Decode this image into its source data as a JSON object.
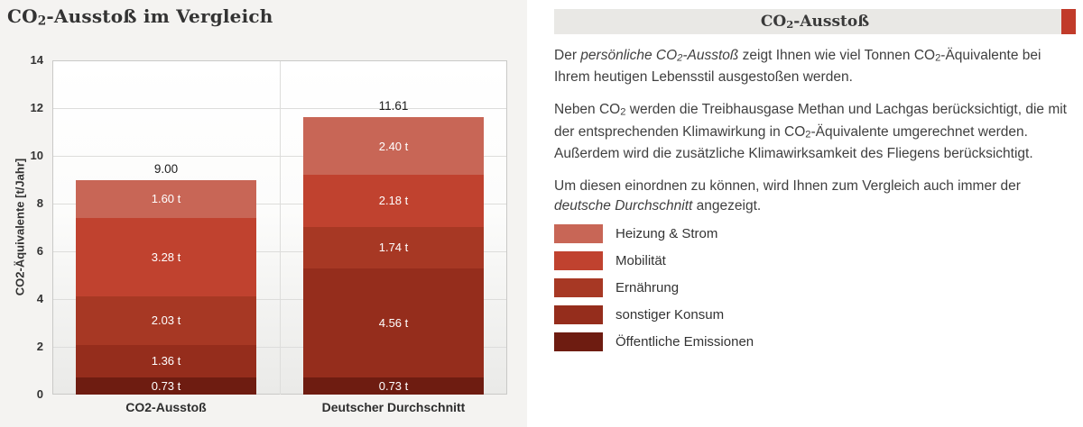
{
  "chart_data": {
    "type": "bar",
    "stacked": true,
    "title": "CO2-Ausstoß im Vergleich",
    "title_parts": [
      {
        "text": "CO"
      },
      {
        "text": "2",
        "sub": true
      },
      {
        "text": "-Ausstoß im Vergleich"
      }
    ],
    "categories": [
      "CO2-Ausstoß",
      "Deutscher Durchschnitt"
    ],
    "series": [
      {
        "name": "Öffentliche Emissionen",
        "values": [
          0.73,
          0.73
        ],
        "labels": [
          "0.73 t",
          "0.73 t"
        ],
        "color": "#6e1c11"
      },
      {
        "name": "sonstiger Konsum",
        "values": [
          1.36,
          4.56
        ],
        "labels": [
          "1.36 t",
          "4.56 t"
        ],
        "color": "#952d1c"
      },
      {
        "name": "Ernährung",
        "values": [
          2.03,
          1.74
        ],
        "labels": [
          "2.03 t",
          "1.74 t"
        ],
        "color": "#a73824"
      },
      {
        "name": "Mobilität",
        "values": [
          3.28,
          2.18
        ],
        "labels": [
          "3.28 t",
          "2.18 t"
        ],
        "color": "#c0422f"
      },
      {
        "name": "Heizung & Strom",
        "values": [
          1.6,
          2.4
        ],
        "labels": [
          "1.60 t",
          "2.40 t"
        ],
        "color": "#c86656"
      }
    ],
    "totals": [
      9.0,
      11.61
    ],
    "total_labels": [
      "9.00",
      "11.61"
    ],
    "xlabel": "",
    "ylabel": "CO2-Äquivalente [t/Jahr]",
    "ylim": [
      0,
      14
    ],
    "ytick_step": 2,
    "grid": true,
    "legend_position": "right-panel"
  },
  "info": {
    "header": {
      "title": "CO2-Ausstoß",
      "title_parts": [
        {
          "text": "CO"
        },
        {
          "text": "2",
          "sub": true
        },
        {
          "text": "-Ausstoß"
        }
      ],
      "accent_color": "#c13b2a"
    },
    "paragraphs": [
      [
        {
          "text": "Der "
        },
        {
          "text": "persönliche CO",
          "italic": true
        },
        {
          "text": "2",
          "italic": true,
          "sub": true
        },
        {
          "text": "-Ausstoß",
          "italic": true
        },
        {
          "text": " zeigt Ihnen wie viel Tonnen CO"
        },
        {
          "text": "2",
          "sub": true
        },
        {
          "text": "-Äquivalente bei Ihrem heutigen Lebensstil ausgestoßen werden."
        }
      ],
      [
        {
          "text": "Neben CO"
        },
        {
          "text": "2",
          "sub": true
        },
        {
          "text": " werden die Treibhausgase Methan und Lachgas berücksichtigt, die mit der entsprechenden Klimawirkung in CO"
        },
        {
          "text": "2",
          "sub": true
        },
        {
          "text": "-Äquivalente umgerechnet werden. Außerdem wird die zusätzliche Klimawirksamkeit des Fliegens berücksichtigt."
        }
      ],
      [
        {
          "text": "Um diesen einordnen zu können, wird Ihnen zum Vergleich auch immer der "
        },
        {
          "text": "deutsche Durchschnitt",
          "italic": true
        },
        {
          "text": " angezeigt."
        }
      ]
    ],
    "legend": [
      {
        "label": "Heizung & Strom",
        "color": "#c86656"
      },
      {
        "label": "Mobilität",
        "color": "#c0422f"
      },
      {
        "label": "Ernährung",
        "color": "#a73824"
      },
      {
        "label": "sonstiger Konsum",
        "color": "#952d1c"
      },
      {
        "label": "Öffentliche Emissionen",
        "color": "#6e1c11"
      }
    ]
  }
}
